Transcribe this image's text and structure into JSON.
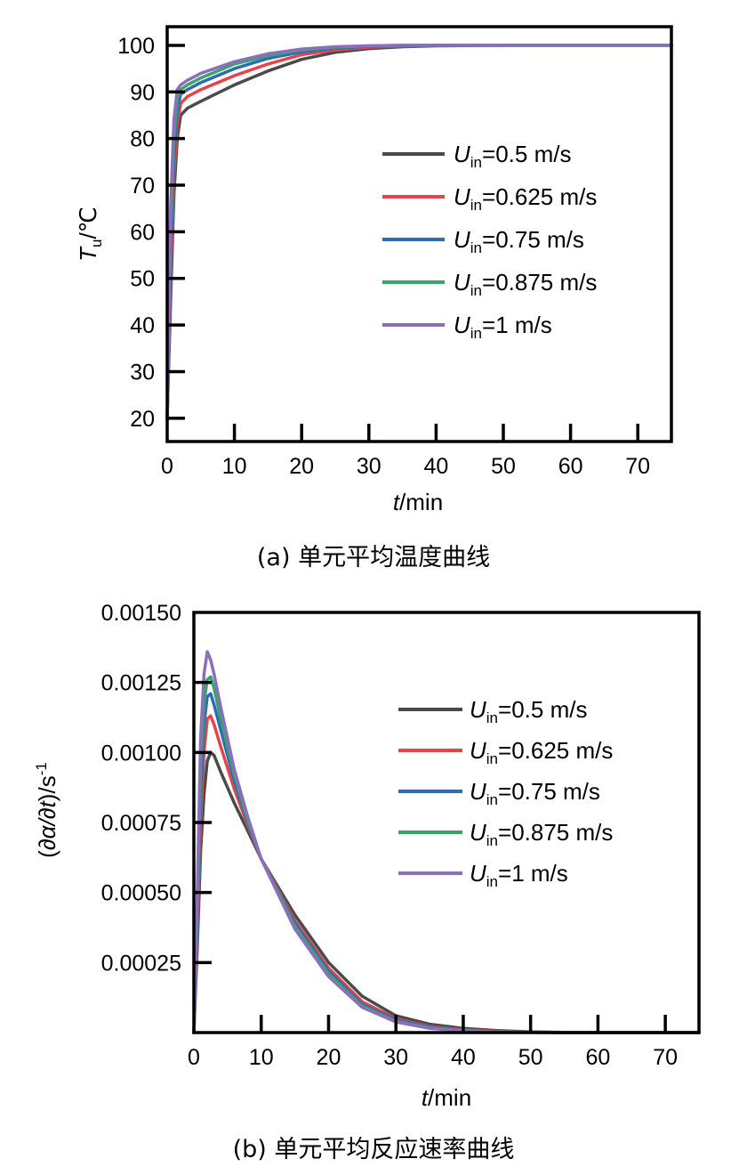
{
  "chart_data": [
    {
      "type": "line",
      "caption": "(a) 单元平均温度曲线",
      "xlabel": {
        "var": "t",
        "unit": "/min"
      },
      "ylabel": {
        "var": "T",
        "sub": "u",
        "unit": "/℃"
      },
      "xlim": [
        0,
        75
      ],
      "ylim": [
        15,
        104
      ],
      "xticks": [
        0,
        10,
        20,
        30,
        40,
        50,
        60,
        70
      ],
      "yticks": [
        20,
        30,
        40,
        50,
        60,
        70,
        80,
        90,
        100
      ],
      "legend_position": "center-right",
      "series": [
        {
          "name": "U_in=0.5 m/s",
          "label_main": "U",
          "label_sub": "in",
          "label_rest": "=0.5 m/s",
          "color": "#4a4a4a",
          "x": [
            0,
            0.5,
            1,
            1.5,
            2,
            3,
            5,
            10,
            15,
            20,
            25,
            30,
            35,
            40,
            50,
            60,
            75
          ],
          "y": [
            20,
            45,
            68,
            80,
            85,
            86.5,
            88,
            91.5,
            94.5,
            97,
            98.5,
            99.3,
            99.7,
            99.9,
            100,
            100,
            100
          ]
        },
        {
          "name": "U_in=0.625 m/s",
          "label_main": "U",
          "label_sub": "in",
          "label_rest": "=0.625 m/s",
          "color": "#e8424a",
          "x": [
            0,
            0.5,
            1,
            1.5,
            2,
            3,
            5,
            10,
            15,
            20,
            25,
            30,
            35,
            40,
            50,
            60,
            75
          ],
          "y": [
            20,
            50,
            72,
            83,
            87.5,
            89,
            90.5,
            93.5,
            96,
            98,
            99,
            99.6,
            99.8,
            100,
            100,
            100,
            100
          ]
        },
        {
          "name": "U_in=0.75 m/s",
          "label_main": "U",
          "label_sub": "in",
          "label_rest": "=0.75 m/s",
          "color": "#2a6db4",
          "x": [
            0,
            0.5,
            1,
            1.5,
            2,
            3,
            5,
            10,
            15,
            20,
            25,
            30,
            35,
            40,
            50,
            60,
            75
          ],
          "y": [
            20,
            55,
            76,
            86,
            89.5,
            90.5,
            92,
            95,
            97.2,
            98.6,
            99.4,
            99.8,
            99.9,
            100,
            100,
            100,
            100
          ]
        },
        {
          "name": "U_in=0.875 m/s",
          "label_main": "U",
          "label_sub": "in",
          "label_rest": "=0.875 m/s",
          "color": "#3aa36a",
          "x": [
            0,
            0.5,
            1,
            1.5,
            2,
            3,
            5,
            10,
            15,
            20,
            25,
            30,
            35,
            40,
            50,
            60,
            75
          ],
          "y": [
            20,
            60,
            80,
            88.5,
            90.5,
            91.5,
            93,
            96,
            97.8,
            99,
            99.6,
            99.9,
            100,
            100,
            100,
            100,
            100
          ]
        },
        {
          "name": "U_in=1 m/s",
          "label_main": "U",
          "label_sub": "in",
          "label_rest": "=1 m/s",
          "color": "#8c6ebd",
          "x": [
            0,
            0.5,
            1,
            1.5,
            2,
            3,
            5,
            10,
            15,
            20,
            25,
            30,
            35,
            40,
            50,
            60,
            75
          ],
          "y": [
            20,
            65,
            84,
            90.5,
            91.5,
            92.5,
            94,
            96.5,
            98.2,
            99.2,
            99.7,
            99.9,
            100,
            100,
            100,
            100,
            100
          ]
        }
      ]
    },
    {
      "type": "line",
      "caption": "(b) 单元平均反应速率曲线",
      "xlabel": {
        "var": "t",
        "unit": "/min"
      },
      "ylabel": {
        "open": "(",
        "var": "∂α/∂t",
        "close": ")/s",
        "sup": "-1"
      },
      "xlim": [
        0,
        75
      ],
      "ylim": [
        0,
        0.0015
      ],
      "xticks": [
        0,
        10,
        20,
        30,
        40,
        50,
        60,
        70
      ],
      "yticks": [
        0.00025,
        0.0005,
        0.00075,
        0.001,
        0.00125,
        0.0015
      ],
      "ytick_labels": [
        "0.00025",
        "0.00050",
        "0.00075",
        "0.00100",
        "0.00125",
        "0.00150"
      ],
      "legend_position": "center-right",
      "series": [
        {
          "name": "U_in=0.5 m/s",
          "label_main": "U",
          "label_sub": "in",
          "label_rest": "=0.5 m/s",
          "color": "#4a4a4a",
          "x": [
            0,
            0.5,
            1,
            1.5,
            2,
            2.5,
            3,
            4,
            6,
            8,
            10,
            15,
            20,
            25,
            30,
            35,
            40,
            45,
            50,
            55,
            60,
            70,
            75
          ],
          "y": [
            0,
            0.0003,
            0.00065,
            0.00085,
            0.00097,
            0.001,
            0.00099,
            0.00093,
            0.00082,
            0.00072,
            0.00062,
            0.00042,
            0.00025,
            0.00013,
            6e-05,
            3e-05,
            1.5e-05,
            7e-06,
            3e-06,
            1e-06,
            0,
            0,
            0
          ]
        },
        {
          "name": "U_in=0.625 m/s",
          "label_main": "U",
          "label_sub": "in",
          "label_rest": "=0.625 m/s",
          "color": "#e8424a",
          "x": [
            0,
            0.5,
            1,
            1.5,
            2,
            2.5,
            3,
            4,
            6,
            8,
            10,
            15,
            20,
            25,
            30,
            35,
            40,
            45,
            50,
            55,
            60,
            70,
            75
          ],
          "y": [
            0,
            0.00035,
            0.00075,
            0.001,
            0.00112,
            0.00113,
            0.0011,
            0.00102,
            0.00087,
            0.00074,
            0.00062,
            0.0004,
            0.00023,
            0.00011,
            5e-05,
            2.2e-05,
            1e-05,
            4e-06,
            2e-06,
            0,
            0,
            0,
            0
          ]
        },
        {
          "name": "U_in=0.75 m/s",
          "label_main": "U",
          "label_sub": "in",
          "label_rest": "=0.75 m/s",
          "color": "#2a6db4",
          "x": [
            0,
            0.5,
            1,
            1.5,
            2,
            2.5,
            3,
            4,
            6,
            8,
            10,
            15,
            20,
            25,
            30,
            35,
            40,
            45,
            50,
            55,
            60,
            70,
            75
          ],
          "y": [
            0,
            0.0004,
            0.00085,
            0.0011,
            0.0012,
            0.00121,
            0.00117,
            0.00108,
            0.0009,
            0.00075,
            0.00062,
            0.00039,
            0.00022,
            0.0001,
            4.5e-05,
            2e-05,
            8e-06,
            3e-06,
            1e-06,
            0,
            0,
            0,
            0
          ]
        },
        {
          "name": "U_in=0.875 m/s",
          "label_main": "U",
          "label_sub": "in",
          "label_rest": "=0.875 m/s",
          "color": "#3aa36a",
          "x": [
            0,
            0.5,
            1,
            1.5,
            2,
            2.5,
            3,
            4,
            6,
            8,
            10,
            15,
            20,
            25,
            30,
            35,
            40,
            45,
            50,
            55,
            60,
            70,
            75
          ],
          "y": [
            0,
            0.00045,
            0.00095,
            0.00118,
            0.00126,
            0.00127,
            0.00123,
            0.00112,
            0.00092,
            0.00076,
            0.00062,
            0.00038,
            0.00021,
            9.5e-05,
            4e-05,
            1.7e-05,
            7e-06,
            2e-06,
            1e-06,
            0,
            0,
            0,
            0
          ]
        },
        {
          "name": "U_in=1 m/s",
          "label_main": "U",
          "label_sub": "in",
          "label_rest": "=1 m/s",
          "color": "#8c6ebd",
          "x": [
            0,
            0.5,
            1,
            1.5,
            2,
            2.5,
            3,
            4,
            6,
            8,
            10,
            15,
            20,
            25,
            30,
            35,
            40,
            45,
            50,
            55,
            60,
            70,
            75
          ],
          "y": [
            0,
            0.0005,
            0.00105,
            0.00128,
            0.00136,
            0.00133,
            0.00128,
            0.00116,
            0.00094,
            0.00077,
            0.00062,
            0.00037,
            0.0002,
            9e-05,
            3.8e-05,
            1.5e-05,
            6e-06,
            2e-06,
            1e-06,
            0,
            0,
            0,
            0
          ]
        }
      ]
    }
  ]
}
